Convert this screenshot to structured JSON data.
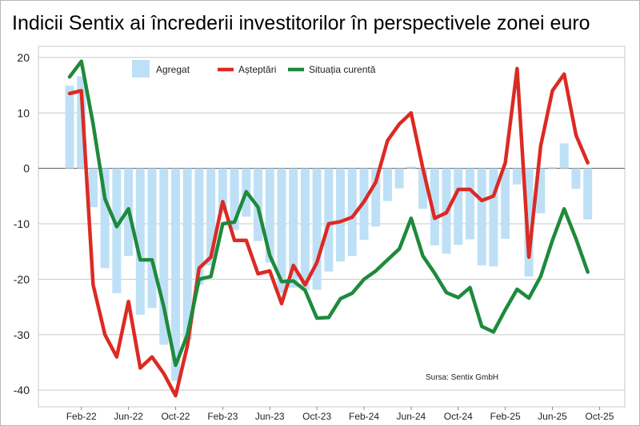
{
  "chart_data": {
    "type": "bar+line",
    "title": "Indicii Sentix ai încrederii investitorilor în perspectivele zonei euro",
    "source": "Sursa: Sentix GmbH",
    "ylim": [
      -43,
      22
    ],
    "yticks": [
      20,
      10,
      0,
      -10,
      -20,
      -30,
      -40
    ],
    "x_tick_labels": [
      "Feb-22",
      "Jun-22",
      "Oct-22",
      "Feb-23",
      "Jun-23",
      "Oct-23",
      "Feb-24",
      "Jun-24",
      "Oct-24",
      "Feb-25",
      "Jun-25",
      "Oct-25"
    ],
    "x_months": [
      "Jan-22",
      "Feb-22",
      "Mar-22",
      "Apr-22",
      "May-22",
      "Jun-22",
      "Jul-22",
      "Aug-22",
      "Sep-22",
      "Oct-22",
      "Nov-22",
      "Dec-22",
      "Jan-23",
      "Feb-23",
      "Mar-23",
      "Apr-23",
      "May-23",
      "Jun-23",
      "Jul-23",
      "Aug-23",
      "Sep-23",
      "Oct-23",
      "Nov-23",
      "Dec-23",
      "Jan-24",
      "Feb-24",
      "Mar-24",
      "Apr-24",
      "May-24",
      "Jun-24",
      "Jul-24",
      "Aug-24",
      "Sep-24",
      "Oct-24",
      "Nov-24",
      "Dec-24",
      "Jan-25",
      "Feb-25",
      "Mar-25",
      "Apr-25",
      "May-25",
      "Jun-25",
      "Jul-25",
      "Aug-25",
      "Sep-25"
    ],
    "grid": true,
    "legend_position": "top-left",
    "series": [
      {
        "name": "Agregat",
        "type": "bar",
        "color": "#bde0f6",
        "values": [
          14.9,
          16.6,
          -7.0,
          -18.0,
          -22.5,
          -15.8,
          -26.4,
          -25.2,
          -31.8,
          -38.3,
          -30.9,
          -21.0,
          -17.5,
          -8.0,
          -11.1,
          -8.7,
          -13.1,
          -17.0,
          -22.5,
          -21.5,
          -21.9,
          -21.9,
          -18.6,
          -16.8,
          -15.8,
          -12.9,
          -10.5,
          -5.9,
          -3.6,
          0.3,
          -7.3,
          -13.9,
          -15.4,
          -13.8,
          -12.8,
          -17.5,
          -17.7,
          -12.7,
          -2.9,
          -19.5,
          -8.1,
          0.2,
          4.5,
          -3.7,
          -9.2
        ]
      },
      {
        "name": "Așteptări",
        "type": "line",
        "color": "#dc2a24",
        "values": [
          13.5,
          14.0,
          -21.0,
          -30.0,
          -34.0,
          -24.0,
          -36.0,
          -34.0,
          -37.0,
          -41.0,
          -32.0,
          -18.0,
          -16.0,
          -6.0,
          -13.0,
          -13.0,
          -19.0,
          -18.5,
          -24.4,
          -17.5,
          -21.0,
          -17.0,
          -10.0,
          -9.6,
          -8.8,
          -6.0,
          -2.5,
          5.0,
          8.0,
          10.0,
          0.0,
          -9.0,
          -8.0,
          -3.8,
          -3.8,
          -5.8,
          -5.0,
          1.0,
          18.0,
          -16.0,
          4.0,
          14.0,
          17.0,
          6.0,
          1.0
        ]
      },
      {
        "name": "Situația curentă",
        "type": "line",
        "color": "#1e8a3c",
        "values": [
          16.5,
          19.3,
          8.0,
          -5.5,
          -10.5,
          -7.3,
          -16.5,
          -16.5,
          -25.0,
          -35.5,
          -30.0,
          -20.0,
          -19.5,
          -10.0,
          -9.7,
          -4.2,
          -7.0,
          -15.7,
          -20.4,
          -20.3,
          -22.0,
          -27.0,
          -26.9,
          -23.5,
          -22.5,
          -20.0,
          -18.5,
          -16.5,
          -14.5,
          -9.0,
          -15.8,
          -18.9,
          -22.4,
          -23.3,
          -21.5,
          -28.5,
          -29.5,
          -25.5,
          -21.8,
          -23.4,
          -19.5,
          -13.0,
          -7.3,
          -12.7,
          -18.7
        ]
      }
    ]
  }
}
